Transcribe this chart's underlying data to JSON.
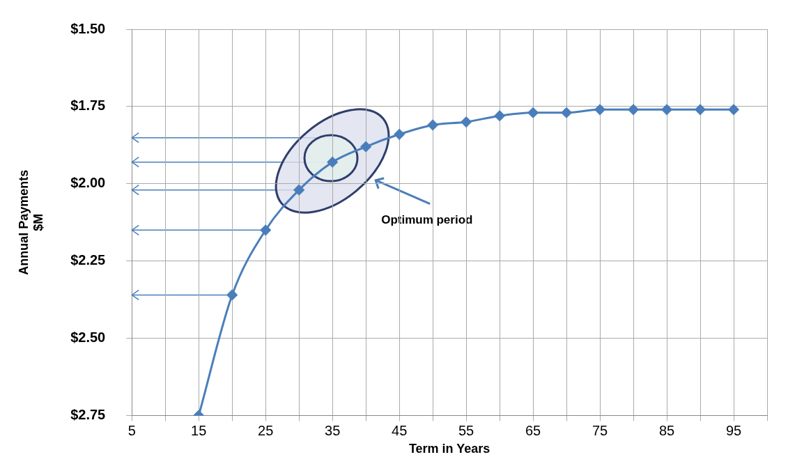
{
  "chart_data": {
    "type": "line",
    "xlabel": "Term in Years",
    "ylabel": "Annual Payments $M",
    "annotations": [
      "Optimum period"
    ],
    "x": [
      15,
      20,
      25,
      30,
      35,
      40,
      45,
      50,
      55,
      60,
      65,
      70,
      75,
      80,
      85,
      90,
      95
    ],
    "series": [
      {
        "color": "#4a7ebb",
        "values": [
          2.75,
          2.36,
          2.15,
          2.02,
          1.93,
          1.88,
          1.84,
          1.81,
          1.8,
          1.78,
          1.77,
          1.77,
          1.76,
          1.76,
          1.76,
          1.76,
          1.76
        ]
      }
    ],
    "xlim": [
      5,
      100
    ],
    "xticks": [
      5,
      {
        "value": 10,
        "label": null
      },
      15,
      {
        "value": 20,
        "label": null
      },
      25,
      {
        "value": 30,
        "label": null
      },
      35,
      {
        "value": 40,
        "label": null
      },
      45,
      {
        "value": 50,
        "label": null
      },
      55,
      {
        "value": 60,
        "label": null
      },
      65,
      {
        "value": 70,
        "label": null
      },
      75,
      {
        "value": 80,
        "label": null
      },
      85,
      {
        "value": 90,
        "label": null
      },
      95,
      {
        "value": 100,
        "label": null
      }
    ],
    "ylim": [
      2.75,
      1.5
    ],
    "yticks": [
      {
        "value": 1.5,
        "label": "$1.50"
      },
      {
        "value": 1.75,
        "label": "$1.75"
      },
      {
        "value": 2,
        "label": "$2.00"
      },
      {
        "value": 2.25,
        "label": "$2.25"
      },
      {
        "value": 2.5,
        "label": "$2.50"
      },
      {
        "value": 2.75,
        "label": "$2.75"
      }
    ],
    "grid": true,
    "legend": false,
    "marker": "diamond",
    "line_style": "solid"
  }
}
